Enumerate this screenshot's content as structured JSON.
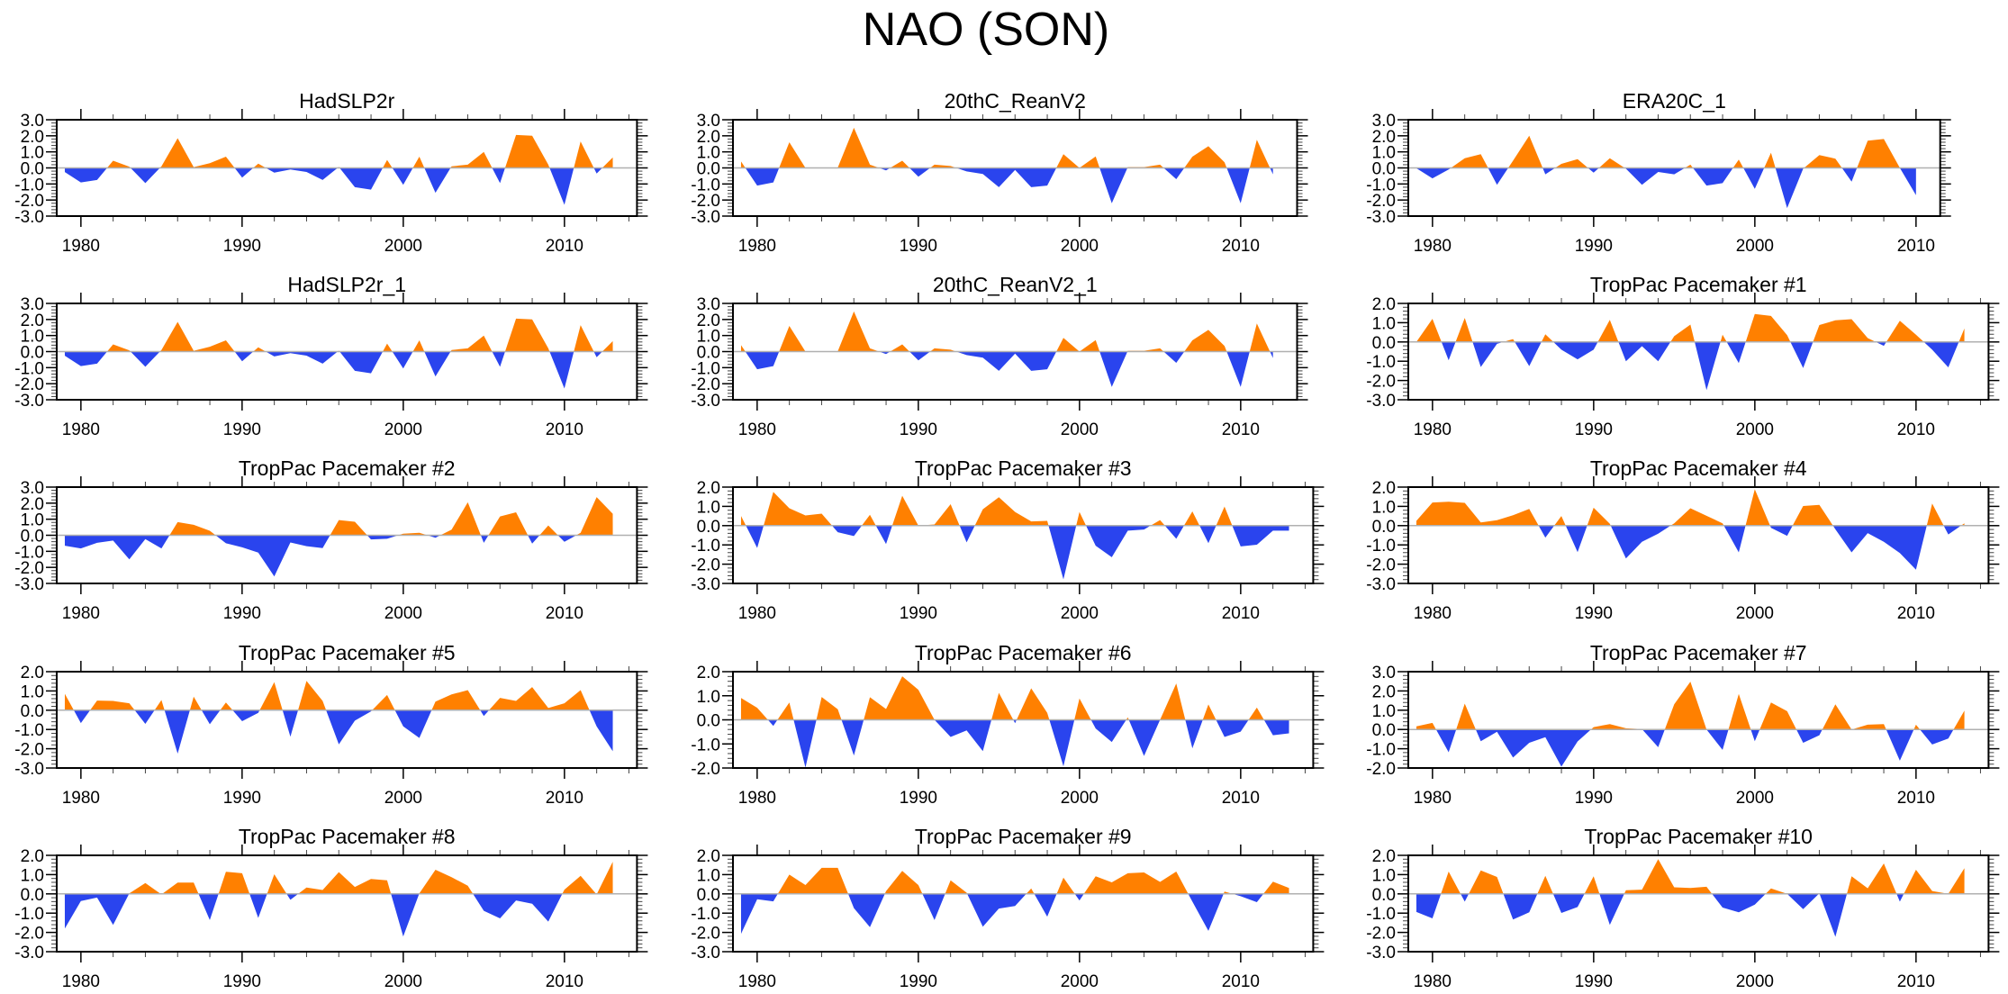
{
  "title": "NAO (SON)",
  "colors": {
    "positive": "#ff8000",
    "negative": "#2a44ee",
    "zero_line": "#b0b0b0"
  },
  "chart_data": [
    {
      "type": "area",
      "title": "HadSLP2r",
      "x_start": 1979,
      "xlim": [
        1978.5,
        2014.5
      ],
      "ylim": [
        -3,
        3
      ],
      "xtick_labels": [
        "1980",
        "1990",
        "2000",
        "2010"
      ],
      "ytick_labels": [
        "3.0",
        "2.0",
        "1.0",
        "0.0",
        "-1.0",
        "-2.0",
        "-3.0"
      ],
      "values": [
        -0.26,
        -0.9,
        -0.75,
        0.45,
        0.08,
        -0.95,
        0.1,
        1.85,
        0.05,
        0.3,
        0.7,
        -0.6,
        0.27,
        -0.3,
        -0.1,
        -0.25,
        -0.75,
        0.06,
        -1.2,
        -1.35,
        0.5,
        -1.05,
        0.7,
        -1.55,
        0.1,
        0.2,
        1.0,
        -0.95,
        2.05,
        2.0,
        0.2,
        -2.3,
        1.65,
        -0.35,
        0.65
      ]
    },
    {
      "type": "area",
      "title": "20thC_ReanV2",
      "x_start": 1979,
      "xlim": [
        1978.5,
        2013.5
      ],
      "ylim": [
        -3,
        3
      ],
      "xtick_labels": [
        "1980",
        "1990",
        "2000",
        "2010"
      ],
      "ytick_labels": [
        "3.0",
        "2.0",
        "1.0",
        "0.0",
        "-1.0",
        "-2.0",
        "-3.0"
      ],
      "values": [
        0.4,
        -1.1,
        -0.9,
        1.6,
        0.0,
        0.03,
        0.02,
        2.5,
        0.2,
        -0.15,
        0.45,
        -0.55,
        0.2,
        0.12,
        -0.22,
        -0.38,
        -1.2,
        -0.13,
        -1.2,
        -1.1,
        0.85,
        0.0,
        0.72,
        -2.2,
        0.05,
        0.05,
        0.2,
        -0.7,
        0.7,
        1.35,
        0.35,
        -2.2,
        1.75,
        -0.4
      ]
    },
    {
      "type": "area",
      "title": "ERA20C_1",
      "x_start": 1979,
      "xlim": [
        1978.5,
        2011.5
      ],
      "ylim": [
        -3,
        3
      ],
      "xtick_labels": [
        "1980",
        "1990",
        "2000",
        "2010"
      ],
      "ytick_labels": [
        "3.0",
        "2.0",
        "1.0",
        "0.0",
        "-1.0",
        "-2.0",
        "-3.0"
      ],
      "values": [
        -0.02,
        -0.65,
        -0.1,
        0.6,
        0.85,
        -1.05,
        0.45,
        2.0,
        -0.4,
        0.25,
        0.55,
        -0.3,
        0.6,
        -0.05,
        -1.05,
        -0.25,
        -0.4,
        0.2,
        -1.1,
        -0.95,
        0.52,
        -1.3,
        0.95,
        -2.5,
        -0.05,
        0.8,
        0.58,
        -0.85,
        1.7,
        1.8,
        0.0,
        -1.7
      ]
    },
    {
      "type": "area",
      "title": "HadSLP2r_1",
      "x_start": 1979,
      "xlim": [
        1978.5,
        2014.5
      ],
      "ylim": [
        -3,
        3
      ],
      "xtick_labels": [
        "1980",
        "1990",
        "2000",
        "2010"
      ],
      "ytick_labels": [
        "3.0",
        "2.0",
        "1.0",
        "0.0",
        "-1.0",
        "-2.0",
        "-3.0"
      ],
      "values": [
        -0.26,
        -0.9,
        -0.75,
        0.45,
        0.08,
        -0.95,
        0.1,
        1.85,
        0.05,
        0.3,
        0.7,
        -0.6,
        0.27,
        -0.3,
        -0.1,
        -0.25,
        -0.75,
        0.06,
        -1.2,
        -1.35,
        0.5,
        -1.05,
        0.7,
        -1.55,
        0.1,
        0.2,
        1.0,
        -0.95,
        2.05,
        2.0,
        0.2,
        -2.3,
        1.65,
        -0.35,
        0.65
      ]
    },
    {
      "type": "area",
      "title": "20thC_ReanV2_1",
      "x_start": 1979,
      "xlim": [
        1978.5,
        2013.5
      ],
      "ylim": [
        -3,
        3
      ],
      "xtick_labels": [
        "1980",
        "1990",
        "2000",
        "2010"
      ],
      "ytick_labels": [
        "3.0",
        "2.0",
        "1.0",
        "0.0",
        "-1.0",
        "-2.0",
        "-3.0"
      ],
      "values": [
        0.4,
        -1.1,
        -0.9,
        1.6,
        0.0,
        0.03,
        0.02,
        2.5,
        0.2,
        -0.15,
        0.45,
        -0.55,
        0.2,
        0.12,
        -0.22,
        -0.38,
        -1.2,
        -0.13,
        -1.2,
        -1.1,
        0.85,
        0.0,
        0.72,
        -2.2,
        0.05,
        0.05,
        0.2,
        -0.7,
        0.7,
        1.35,
        0.35,
        -2.2,
        1.75,
        -0.4
      ]
    },
    {
      "type": "area",
      "title": "TropPac Pacemaker #1",
      "x_start": 1979,
      "xlim": [
        1978.5,
        2014.5
      ],
      "ylim": [
        -3,
        2
      ],
      "xtick_labels": [
        "1980",
        "1990",
        "2000",
        "2010"
      ],
      "ytick_labels": [
        "2.0",
        "1.0",
        "0.0",
        "-1.0",
        "-2.0",
        "-3.0"
      ],
      "values": [
        0.0,
        1.2,
        -0.95,
        1.25,
        -1.3,
        -0.1,
        0.15,
        -1.25,
        0.4,
        -0.4,
        -0.9,
        -0.4,
        1.15,
        -1.0,
        -0.22,
        -1.0,
        0.3,
        0.9,
        -2.5,
        0.38,
        -1.1,
        1.45,
        1.35,
        0.35,
        -1.35,
        0.88,
        1.12,
        1.18,
        0.2,
        -0.2,
        1.1,
        0.38,
        -0.4,
        -1.32,
        0.7
      ]
    },
    {
      "type": "area",
      "title": "TropPac Pacemaker #2",
      "x_start": 1979,
      "xlim": [
        1978.5,
        2014.5
      ],
      "ylim": [
        -3,
        3
      ],
      "xtick_labels": [
        "1980",
        "1990",
        "2000",
        "2010"
      ],
      "ytick_labels": [
        "3.0",
        "2.0",
        "1.0",
        "0.0",
        "-1.0",
        "-2.0",
        "-3.0"
      ],
      "values": [
        -0.65,
        -0.82,
        -0.47,
        -0.33,
        -1.5,
        -0.24,
        -0.82,
        0.82,
        0.65,
        0.28,
        -0.5,
        -0.75,
        -1.08,
        -2.56,
        -0.45,
        -0.68,
        -0.8,
        0.95,
        0.84,
        -0.26,
        -0.22,
        0.1,
        0.15,
        -0.15,
        0.35,
        2.05,
        -0.47,
        1.17,
        1.43,
        -0.52,
        0.61,
        -0.41,
        0.15,
        2.38,
        1.34
      ]
    },
    {
      "type": "area",
      "title": "TropPac Pacemaker #3",
      "x_start": 1979,
      "xlim": [
        1978.5,
        2014.5
      ],
      "ylim": [
        -3,
        2
      ],
      "xtick_labels": [
        "1980",
        "1990",
        "2000",
        "2010"
      ],
      "ytick_labels": [
        "2.0",
        "1.0",
        "0.0",
        "-1.0",
        "-2.0",
        "-3.0"
      ],
      "values": [
        0.5,
        -1.16,
        1.75,
        0.9,
        0.53,
        0.62,
        -0.34,
        -0.54,
        0.56,
        -0.96,
        1.55,
        0.0,
        0.06,
        1.11,
        -0.87,
        0.85,
        1.47,
        0.71,
        0.22,
        0.25,
        -2.79,
        0.71,
        -1.04,
        -1.64,
        -0.26,
        -0.2,
        0.29,
        -0.68,
        0.74,
        -0.91,
        0.99,
        -1.08,
        -0.99,
        -0.26,
        -0.26
      ]
    },
    {
      "type": "area",
      "title": "TropPac Pacemaker #4",
      "x_start": 1979,
      "xlim": [
        1978.5,
        2014.5
      ],
      "ylim": [
        -3,
        2
      ],
      "xtick_labels": [
        "1980",
        "1990",
        "2000",
        "2010"
      ],
      "ytick_labels": [
        "2.0",
        "1.0",
        "0.0",
        "-1.0",
        "-2.0",
        "-3.0"
      ],
      "values": [
        0.25,
        1.2,
        1.24,
        1.18,
        0.17,
        0.28,
        0.54,
        0.87,
        -0.62,
        0.5,
        -1.38,
        0.93,
        0.1,
        -1.7,
        -0.84,
        -0.42,
        0.12,
        0.9,
        0.51,
        0.12,
        -1.39,
        1.89,
        -0.11,
        -0.53,
        1.02,
        1.08,
        -0.19,
        -1.39,
        -0.39,
        -0.84,
        -1.42,
        -2.29,
        1.15,
        -0.46,
        0.12
      ]
    },
    {
      "type": "area",
      "title": "TropPac Pacemaker #5",
      "x_start": 1979,
      "xlim": [
        1978.5,
        2014.5
      ],
      "ylim": [
        -3,
        2
      ],
      "xtick_labels": [
        "1980",
        "1990",
        "2000",
        "2010"
      ],
      "ytick_labels": [
        "2.0",
        "1.0",
        "0.0",
        "-1.0",
        "-2.0",
        "-3.0"
      ],
      "values": [
        0.85,
        -0.67,
        0.5,
        0.48,
        0.36,
        -0.71,
        0.53,
        -2.25,
        0.7,
        -0.73,
        0.4,
        -0.57,
        -0.14,
        1.46,
        -1.38,
        1.52,
        0.48,
        -1.77,
        -0.54,
        -0.06,
        0.79,
        -0.84,
        -1.44,
        0.45,
        0.82,
        1.04,
        -0.3,
        0.64,
        0.48,
        1.2,
        0.11,
        0.36,
        1.04,
        -0.84,
        -2.13
      ]
    },
    {
      "type": "area",
      "title": "TropPac Pacemaker #6",
      "x_start": 1979,
      "xlim": [
        1978.5,
        2014.5
      ],
      "ylim": [
        -2,
        2
      ],
      "xtick_labels": [
        "1980",
        "1990",
        "2000",
        "2010"
      ],
      "ytick_labels": [
        "2.0",
        "1.0",
        "0.0",
        "-1.0",
        "-2.0"
      ],
      "values": [
        0.91,
        0.5,
        -0.25,
        0.72,
        -1.98,
        0.95,
        0.44,
        -1.48,
        0.94,
        0.45,
        1.81,
        1.25,
        0.0,
        -0.71,
        -0.44,
        -1.3,
        1.12,
        -0.14,
        1.31,
        0.29,
        -1.93,
        0.89,
        -0.36,
        -0.92,
        0.1,
        -1.5,
        0.0,
        1.51,
        -1.18,
        0.64,
        -0.71,
        -0.49,
        0.51,
        -0.64,
        -0.56
      ]
    },
    {
      "type": "area",
      "title": "TropPac Pacemaker #7",
      "x_start": 1979,
      "xlim": [
        1978.5,
        2014.5
      ],
      "ylim": [
        -2,
        3
      ],
      "xtick_labels": [
        "1980",
        "1990",
        "2000",
        "2010"
      ],
      "ytick_labels": [
        "3.0",
        "2.0",
        "1.0",
        "0.0",
        "-1.0",
        "-2.0"
      ],
      "values": [
        0.16,
        0.34,
        -1.18,
        1.34,
        -0.61,
        -0.12,
        -1.46,
        -0.69,
        -0.4,
        -1.93,
        -0.62,
        0.12,
        0.28,
        0.06,
        0.02,
        -0.92,
        1.31,
        2.48,
        0.0,
        -1.06,
        1.84,
        -0.61,
        1.4,
        0.95,
        -0.69,
        -0.3,
        1.31,
        0.0,
        0.25,
        0.28,
        -1.62,
        0.25,
        -0.78,
        -0.47,
        0.98
      ]
    },
    {
      "type": "area",
      "title": "TropPac Pacemaker #8",
      "x_start": 1979,
      "xlim": [
        1978.5,
        2014.5
      ],
      "ylim": [
        -3,
        2
      ],
      "xtick_labels": [
        "1980",
        "1990",
        "2000",
        "2010"
      ],
      "ytick_labels": [
        "2.0",
        "1.0",
        "0.0",
        "-1.0",
        "-2.0",
        "-3.0"
      ],
      "values": [
        -1.8,
        -0.37,
        -0.19,
        -1.61,
        0.03,
        0.56,
        -0.03,
        0.59,
        0.59,
        -1.36,
        1.15,
        1.07,
        -1.25,
        1.02,
        -0.31,
        0.33,
        0.2,
        1.13,
        0.36,
        0.77,
        0.7,
        -2.21,
        0.03,
        1.25,
        0.87,
        0.42,
        -0.88,
        -1.27,
        -0.34,
        -0.51,
        -1.44,
        0.22,
        0.94,
        -0.03,
        1.67
      ]
    },
    {
      "type": "area",
      "title": "TropPac Pacemaker #9",
      "x_start": 1979,
      "xlim": [
        1978.5,
        2014.5
      ],
      "ylim": [
        -3,
        2
      ],
      "xtick_labels": [
        "1980",
        "1990",
        "2000",
        "2010"
      ],
      "ytick_labels": [
        "2.0",
        "1.0",
        "0.0",
        "-1.0",
        "-2.0",
        "-3.0"
      ],
      "values": [
        -2.07,
        -0.28,
        -0.39,
        1.0,
        0.46,
        1.35,
        1.35,
        -0.74,
        -1.73,
        0.14,
        1.19,
        0.46,
        -1.36,
        0.7,
        0.06,
        -1.7,
        -0.76,
        -0.63,
        0.28,
        -1.18,
        0.84,
        -0.34,
        0.91,
        0.6,
        1.07,
        1.11,
        0.62,
        1.16,
        -0.4,
        -1.92,
        0.12,
        -0.12,
        -0.43,
        0.63,
        0.31
      ]
    },
    {
      "type": "area",
      "title": "TropPac Pacemaker #10",
      "x_start": 1979,
      "xlim": [
        1978.5,
        2014.5
      ],
      "ylim": [
        -3,
        2
      ],
      "xtick_labels": [
        "1980",
        "1990",
        "2000",
        "2010"
      ],
      "ytick_labels": [
        "2.0",
        "1.0",
        "0.0",
        "-1.0",
        "-2.0",
        "-3.0"
      ],
      "values": [
        -0.94,
        -1.27,
        1.16,
        -0.4,
        1.22,
        0.88,
        -1.33,
        -0.96,
        0.94,
        -0.99,
        -0.68,
        0.91,
        -1.61,
        0.19,
        0.22,
        1.8,
        0.34,
        0.31,
        0.37,
        -0.71,
        -0.96,
        -0.56,
        0.28,
        0.0,
        -0.79,
        0.03,
        -2.23,
        0.91,
        0.29,
        1.58,
        -0.4,
        1.25,
        0.15,
        0.0,
        1.33
      ]
    }
  ]
}
